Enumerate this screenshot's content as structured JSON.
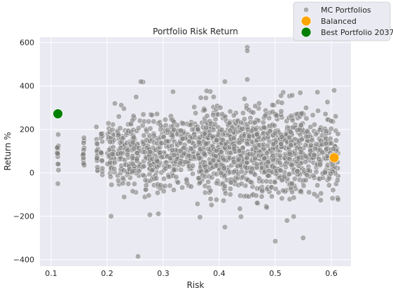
{
  "chart_data": {
    "type": "scatter",
    "title": "Portfolio Risk Return",
    "xlabel": "Risk",
    "ylabel": "Return %",
    "xlim": [
      0.08,
      0.635
    ],
    "ylim": [
      -430,
      625
    ],
    "xticks": [
      0.1,
      0.2,
      0.3,
      0.4,
      0.5,
      0.6
    ],
    "xtick_labels": [
      "0.1",
      "0.2",
      "0.3",
      "0.4",
      "0.5",
      "0.6"
    ],
    "yticks": [
      -400,
      -200,
      0,
      200,
      400,
      600
    ],
    "ytick_labels": [
      "−400",
      "−200",
      "0",
      "200",
      "400",
      "600"
    ],
    "grid": true,
    "legend_position": "top-right",
    "series": [
      {
        "name": "MC Portfolios",
        "color": "#808080",
        "marker": "circle",
        "risk_levels": [
          0.112,
          0.158,
          0.182,
          0.19,
          0.207,
          0.225,
          0.24,
          0.252,
          0.27,
          0.282,
          0.295,
          0.31,
          0.322,
          0.337,
          0.352,
          0.368,
          0.38,
          0.395,
          0.41,
          0.425,
          0.44,
          0.455,
          0.47,
          0.485,
          0.5,
          0.515,
          0.53,
          0.545,
          0.56,
          0.575,
          0.59,
          0.605
        ],
        "notable_points": [
          {
            "x": 0.45,
            "y": 578
          },
          {
            "x": 0.45,
            "y": 562
          },
          {
            "x": 0.255,
            "y": -385
          },
          {
            "x": 0.5,
            "y": -315
          },
          {
            "x": 0.41,
            "y": -250
          },
          {
            "x": 0.207,
            "y": -200
          },
          {
            "x": 0.112,
            "y": -50
          },
          {
            "x": 0.605,
            "y": 380
          },
          {
            "x": 0.26,
            "y": 420
          },
          {
            "x": 0.41,
            "y": 420
          },
          {
            "x": 0.45,
            "y": 430
          }
        ]
      },
      {
        "name": "Balanced",
        "color": "#ffa500",
        "points": [
          {
            "x": 0.605,
            "y": 70
          }
        ]
      },
      {
        "name": "Best Portfolio 2037",
        "color": "#008000",
        "points": [
          {
            "x": 0.112,
            "y": 272
          }
        ]
      }
    ]
  }
}
